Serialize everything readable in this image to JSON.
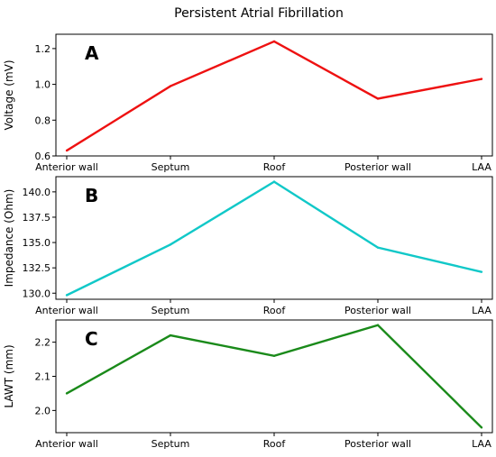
{
  "figure": {
    "title": "Persistent Atrial Fibrillation"
  },
  "chart_data": [
    {
      "type": "line",
      "panel_label": "A",
      "title": "",
      "xlabel": "",
      "ylabel": "Voltage (mV)",
      "categories": [
        "Anterior wall",
        "Septum",
        "Roof",
        "Posterior wall",
        "LAA"
      ],
      "series": [
        {
          "values": [
            0.63,
            0.99,
            1.24,
            0.92,
            1.03
          ],
          "color": "#ee1111"
        }
      ],
      "ylim": [
        0.6,
        1.28
      ],
      "yticks": [
        0.6,
        0.8,
        1.0,
        1.2
      ],
      "ytick_labels": [
        "0.6",
        "0.8",
        "1.0",
        "1.2"
      ],
      "grid": false
    },
    {
      "type": "line",
      "panel_label": "B",
      "title": "",
      "xlabel": "",
      "ylabel": "Impedance (Ohm)",
      "categories": [
        "Anterior wall",
        "Septum",
        "Roof",
        "Posterior wall",
        "LAA"
      ],
      "series": [
        {
          "values": [
            129.8,
            134.8,
            141.0,
            134.5,
            132.1
          ],
          "color": "#11c8c8"
        }
      ],
      "ylim": [
        129.4,
        141.5
      ],
      "yticks": [
        130.0,
        132.5,
        135.0,
        137.5,
        140.0
      ],
      "ytick_labels": [
        "130.0",
        "132.5",
        "135.0",
        "137.5",
        "140.0"
      ],
      "grid": false
    },
    {
      "type": "line",
      "panel_label": "C",
      "title": "",
      "xlabel": "",
      "ylabel": "LAWT (mm)",
      "categories": [
        "Anterior wall",
        "Septum",
        "Roof",
        "Posterior wall",
        "LAA"
      ],
      "series": [
        {
          "values": [
            2.05,
            2.22,
            2.16,
            2.25,
            1.95
          ],
          "color": "#1a8a1a"
        }
      ],
      "ylim": [
        1.935,
        2.265
      ],
      "yticks": [
        2.0,
        2.1,
        2.2
      ],
      "ytick_labels": [
        "2.0",
        "2.1",
        "2.2"
      ],
      "grid": false
    }
  ]
}
